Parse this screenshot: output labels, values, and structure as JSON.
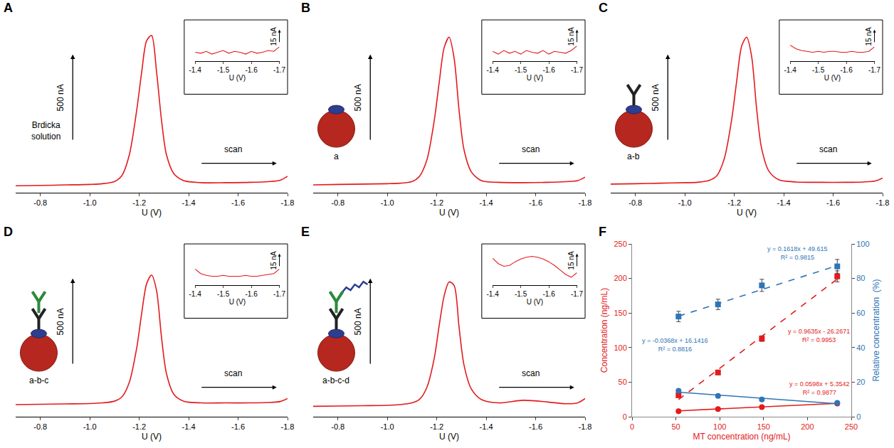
{
  "chart_data": [
    {
      "panel": "A",
      "type": "line",
      "label": "Brdicka solution",
      "x_label": "U (V)",
      "color": "#e41a1c",
      "xlim": [
        -0.7,
        -1.8
      ],
      "xticks": [
        -0.8,
        {
          "value": -1,
          "label": "-1.0"
        },
        -1.2,
        -1.4,
        -1.6,
        -1.8
      ],
      "ylim": [
        0,
        1000
      ],
      "tick_labels": "x",
      "scale_bar": {
        "value": 500,
        "label": "500 nA"
      },
      "scan_label": "scan",
      "x": [
        -0.7,
        -0.8,
        -0.9,
        -1,
        -1.05,
        -1.1,
        -1.13,
        -1.16,
        -1.19,
        -1.21,
        -1.23,
        -1.25,
        -1.27,
        -1.29,
        -1.31,
        -1.34,
        -1.38,
        -1.45,
        -1.55,
        -1.65,
        -1.72,
        -1.77,
        -1.8
      ],
      "values": [
        40,
        42,
        45,
        48,
        52,
        65,
        100,
        220,
        480,
        700,
        880,
        910,
        700,
        420,
        220,
        110,
        70,
        58,
        58,
        60,
        64,
        72,
        95
      ],
      "inset": {
        "x_label": "U (V)",
        "xlim": [
          -1.4,
          -1.7
        ],
        "xticks": [
          -1.4,
          -1.5,
          -1.6,
          -1.7
        ],
        "ylim": [
          0,
          40
        ],
        "scale_bar": {
          "value": 15,
          "label": "15 nA"
        },
        "x": [
          -1.4,
          -1.42,
          -1.44,
          -1.46,
          -1.48,
          -1.5,
          -1.52,
          -1.54,
          -1.56,
          -1.58,
          -1.6,
          -1.62,
          -1.64,
          -1.66,
          -1.68,
          -1.7
        ],
        "values": [
          10,
          9,
          11,
          8,
          10,
          12,
          9,
          11,
          10,
          8,
          11,
          9,
          10,
          12,
          11,
          16
        ]
      }
    },
    {
      "panel": "B",
      "type": "line",
      "label": "a",
      "x_label": "U (V)",
      "color": "#e41a1c",
      "xlim": [
        -0.7,
        -1.8
      ],
      "xticks": [
        -0.8,
        {
          "value": -1,
          "label": "-1.0"
        },
        -1.2,
        -1.4,
        -1.6,
        -1.8
      ],
      "ylim": [
        0,
        1000
      ],
      "tick_labels": "x",
      "scale_bar": {
        "value": 500,
        "label": "500 nA"
      },
      "scan_label": "scan",
      "x": [
        -0.7,
        -0.8,
        -0.9,
        -1,
        -1.05,
        -1.1,
        -1.13,
        -1.16,
        -1.19,
        -1.21,
        -1.23,
        -1.25,
        -1.27,
        -1.29,
        -1.31,
        -1.34,
        -1.38,
        -1.45,
        -1.55,
        -1.65,
        -1.72,
        -1.77,
        -1.8
      ],
      "values": [
        45,
        48,
        50,
        52,
        55,
        65,
        95,
        190,
        420,
        640,
        840,
        900,
        780,
        480,
        250,
        120,
        70,
        60,
        58,
        60,
        64,
        70,
        90
      ],
      "inset": {
        "x_label": "U (V)",
        "xlim": [
          -1.4,
          -1.7
        ],
        "xticks": [
          -1.4,
          -1.5,
          -1.6,
          -1.7
        ],
        "ylim": [
          0,
          40
        ],
        "scale_bar": {
          "value": 15,
          "label": "15 nA"
        },
        "x": [
          -1.4,
          -1.42,
          -1.44,
          -1.46,
          -1.48,
          -1.5,
          -1.52,
          -1.54,
          -1.56,
          -1.58,
          -1.6,
          -1.62,
          -1.64,
          -1.66,
          -1.68,
          -1.7
        ],
        "values": [
          11,
          8,
          12,
          9,
          11,
          8,
          12,
          10,
          9,
          12,
          8,
          11,
          10,
          9,
          12,
          17
        ]
      }
    },
    {
      "panel": "C",
      "type": "line",
      "label": "a-b",
      "x_label": "U (V)",
      "color": "#e41a1c",
      "xlim": [
        -0.7,
        -1.8
      ],
      "xticks": [
        -0.8,
        {
          "value": -1,
          "label": "-1.0"
        },
        -1.2,
        -1.4,
        -1.6,
        -1.8
      ],
      "ylim": [
        0,
        1000
      ],
      "tick_labels": "x",
      "scale_bar": {
        "value": 500,
        "label": "500 nA"
      },
      "scan_label": "scan",
      "x": [
        -0.7,
        -0.8,
        -0.9,
        -1,
        -1.05,
        -1.1,
        -1.13,
        -1.16,
        -1.19,
        -1.21,
        -1.23,
        -1.25,
        -1.27,
        -1.29,
        -1.31,
        -1.34,
        -1.38,
        -1.45,
        -1.55,
        -1.65,
        -1.72,
        -1.77,
        -1.8
      ],
      "values": [
        50,
        52,
        55,
        58,
        60,
        72,
        100,
        200,
        430,
        650,
        850,
        900,
        790,
        490,
        260,
        125,
        75,
        62,
        60,
        60,
        62,
        68,
        85
      ],
      "inset": {
        "x_label": "U (V)",
        "xlim": [
          -1.4,
          -1.7
        ],
        "xticks": [
          -1.4,
          -1.5,
          -1.6,
          -1.7
        ],
        "ylim": [
          0,
          40
        ],
        "scale_bar": {
          "value": 15,
          "label": "15 nA"
        },
        "x": [
          -1.4,
          -1.42,
          -1.44,
          -1.46,
          -1.48,
          -1.5,
          -1.52,
          -1.54,
          -1.56,
          -1.58,
          -1.6,
          -1.62,
          -1.64,
          -1.66,
          -1.68,
          -1.7
        ],
        "values": [
          18,
          14,
          12,
          11,
          10,
          11,
          10,
          11,
          11,
          10,
          10,
          11,
          10,
          10,
          11,
          16
        ]
      }
    },
    {
      "panel": "D",
      "type": "line",
      "label": "a-b-c",
      "x_label": "U (V)",
      "color": "#e41a1c",
      "xlim": [
        -0.7,
        -1.8
      ],
      "xticks": [
        -0.8,
        {
          "value": -1,
          "label": "-1.0"
        },
        -1.2,
        -1.4,
        -1.6,
        -1.8
      ],
      "ylim": [
        0,
        1000
      ],
      "tick_labels": "x",
      "scale_bar": {
        "value": 500,
        "label": "500 nA"
      },
      "scan_label": "scan",
      "x": [
        -0.7,
        -0.8,
        -0.9,
        -1,
        -1.05,
        -1.1,
        -1.13,
        -1.16,
        -1.19,
        -1.21,
        -1.23,
        -1.25,
        -1.27,
        -1.29,
        -1.31,
        -1.34,
        -1.38,
        -1.45,
        -1.55,
        -1.65,
        -1.72,
        -1.77,
        -1.8
      ],
      "values": [
        70,
        72,
        74,
        76,
        80,
        90,
        115,
        200,
        400,
        600,
        770,
        820,
        730,
        460,
        250,
        130,
        90,
        80,
        80,
        80,
        82,
        88,
        105
      ],
      "inset": {
        "x_label": "U (V)",
        "xlim": [
          -1.4,
          -1.7
        ],
        "xticks": [
          -1.4,
          -1.5,
          -1.6,
          -1.7
        ],
        "ylim": [
          0,
          40
        ],
        "scale_bar": {
          "value": 15,
          "label": "15 nA"
        },
        "x": [
          -1.4,
          -1.42,
          -1.44,
          -1.46,
          -1.48,
          -1.5,
          -1.52,
          -1.54,
          -1.56,
          -1.58,
          -1.6,
          -1.62,
          -1.64,
          -1.66,
          -1.68,
          -1.7
        ],
        "values": [
          18,
          13,
          11,
          10,
          10,
          11,
          10,
          10,
          10,
          11,
          10,
          10,
          11,
          12,
          13,
          18
        ]
      }
    },
    {
      "panel": "E",
      "type": "line",
      "label": "a-b-c-d",
      "x_label": "U (V)",
      "color": "#e41a1c",
      "xlim": [
        -0.7,
        -1.8
      ],
      "xticks": [
        -0.8,
        {
          "value": -1,
          "label": "-1.0"
        },
        -1.2,
        -1.4,
        -1.6,
        -1.8
      ],
      "ylim": [
        0,
        1000
      ],
      "tick_labels": "x",
      "scale_bar": {
        "value": 500,
        "label": "500 nA"
      },
      "scan_label": "scan",
      "x": [
        -0.7,
        -0.8,
        -0.9,
        -1,
        -1.05,
        -1.1,
        -1.13,
        -1.16,
        -1.19,
        -1.21,
        -1.23,
        -1.25,
        -1.27,
        -1.29,
        -1.31,
        -1.34,
        -1.38,
        -1.45,
        -1.55,
        -1.65,
        -1.72,
        -1.77,
        -1.8
      ],
      "values": [
        60,
        62,
        64,
        66,
        70,
        80,
        100,
        170,
        340,
        530,
        700,
        780,
        760,
        520,
        300,
        160,
        100,
        80,
        95,
        85,
        75,
        80,
        105
      ],
      "inset": {
        "x_label": "U (V)",
        "xlim": [
          -1.4,
          -1.7
        ],
        "xticks": [
          -1.4,
          -1.5,
          -1.6,
          -1.7
        ],
        "ylim": [
          0,
          40
        ],
        "scale_bar": {
          "value": 15,
          "label": "15 nA"
        },
        "x": [
          -1.4,
          -1.42,
          -1.44,
          -1.46,
          -1.48,
          -1.5,
          -1.52,
          -1.54,
          -1.56,
          -1.58,
          -1.6,
          -1.62,
          -1.64,
          -1.66,
          -1.68,
          -1.7
        ],
        "values": [
          30,
          24,
          21,
          22,
          26,
          29,
          31,
          32,
          31,
          29,
          26,
          22,
          17,
          12,
          9,
          14
        ]
      }
    },
    {
      "panel": "F",
      "type": "scatter",
      "x_label": "MT concentration (ng/mL)",
      "y_label": "Concentration (ng/mL)",
      "y2_label": "Relative concentration  (%)",
      "xlim": [
        0,
        250
      ],
      "xticks": [
        0,
        50,
        100,
        150,
        200,
        250
      ],
      "ylim": [
        0,
        250
      ],
      "yticks": [
        0,
        50,
        100,
        150,
        200,
        250
      ],
      "y2lim": [
        0,
        100
      ],
      "y2ticks": [
        0,
        20,
        40,
        60,
        80,
        100
      ],
      "x": [
        53,
        98,
        148,
        234
      ],
      "series": [
        {
          "color": "#e41a1c",
          "marker": "square",
          "values": [
            31,
            64,
            113,
            203
          ],
          "error": [
            3,
            3,
            4,
            8
          ],
          "trendline": {
            "slope": 0.9635,
            "intercept": -26.2671,
            "line_style": "dashed",
            "equation": "y = 0.9635x - 26.2671",
            "r2": "R² = 0.9953"
          }
        },
        {
          "color": "#e41a1c",
          "marker": "circle",
          "values": [
            8,
            11,
            14,
            19
          ],
          "trendline": {
            "slope": 0.0598,
            "intercept": 5.3542,
            "line_style": "solid",
            "equation": "y = 0.0598x + 5.3542",
            "r2": "R² = 0.9877"
          }
        },
        {
          "color": "#2e75b6",
          "marker": "square",
          "axis": "y2",
          "values": [
            58,
            65,
            76,
            87
          ],
          "error": [
            3,
            3,
            3.5,
            4
          ],
          "trendline": {
            "slope": 0.1618,
            "intercept": 49.615,
            "line_style": "dashed",
            "equation": "y = 0.1618x + 49.615",
            "r2": "R² = 0.9815"
          }
        },
        {
          "color": "#2e75b6",
          "marker": "circle",
          "axis": "y2",
          "values": [
            15,
            12,
            10,
            8
          ],
          "trendline": {
            "slope": -0.0368,
            "intercept": 16.1416,
            "line_style": "solid",
            "equation": "y = -0.0368x + 16.1416",
            "r2": "R² = 0.8816"
          }
        }
      ]
    }
  ]
}
